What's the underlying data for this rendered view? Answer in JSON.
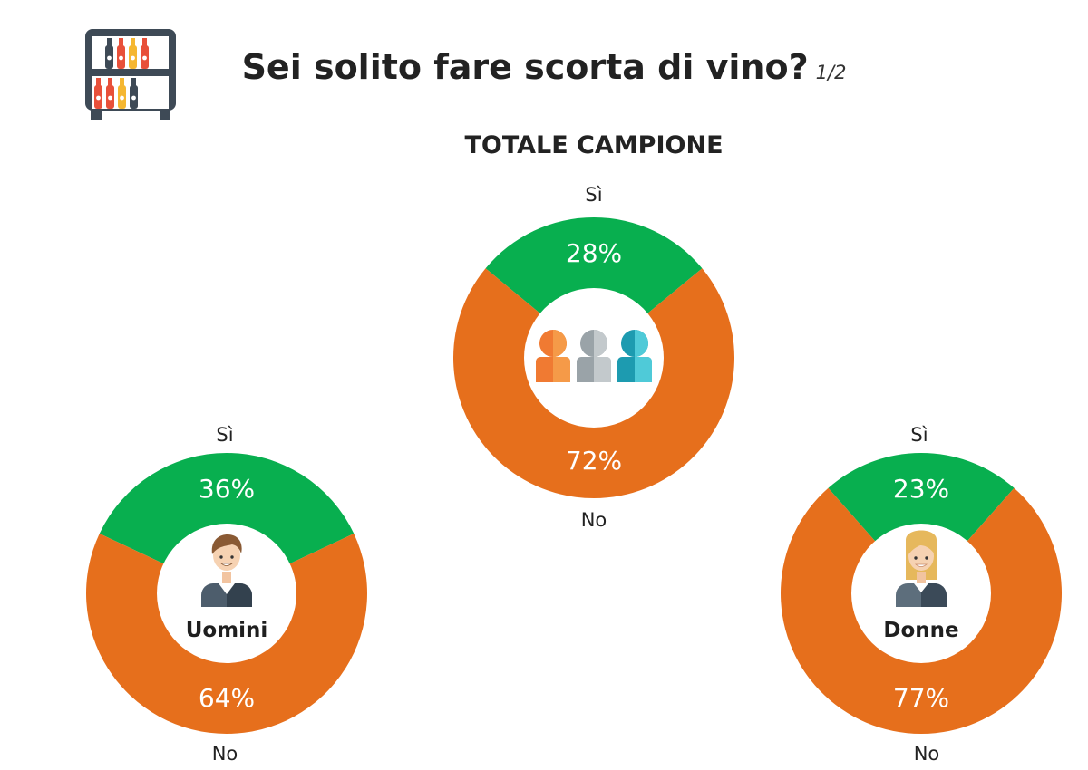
{
  "header": {
    "title": "Sei solito fare scorta di vino?",
    "page": "1/2",
    "icon": "wine-shelf-icon"
  },
  "section_title": "TOTALE CAMPIONE",
  "colors": {
    "yes": "#08af4f",
    "no": "#e66f1c",
    "center": "#ffffff"
  },
  "chart_data": [
    {
      "type": "pie",
      "id": "totale",
      "categories": [
        "Sì",
        "No"
      ],
      "values": [
        28,
        72
      ],
      "labels": [
        "28%",
        "72%"
      ],
      "center_label": "",
      "center_icon": "group-people-icon"
    },
    {
      "type": "pie",
      "id": "uomini",
      "categories": [
        "Sì",
        "No"
      ],
      "values": [
        36,
        64
      ],
      "labels": [
        "36%",
        "64%"
      ],
      "center_label": "Uomini",
      "center_icon": "man-avatar-icon"
    },
    {
      "type": "pie",
      "id": "donne",
      "categories": [
        "Sì",
        "No"
      ],
      "values": [
        23,
        77
      ],
      "labels": [
        "23%",
        "77%"
      ],
      "center_label": "Donne",
      "center_icon": "woman-avatar-icon"
    }
  ]
}
